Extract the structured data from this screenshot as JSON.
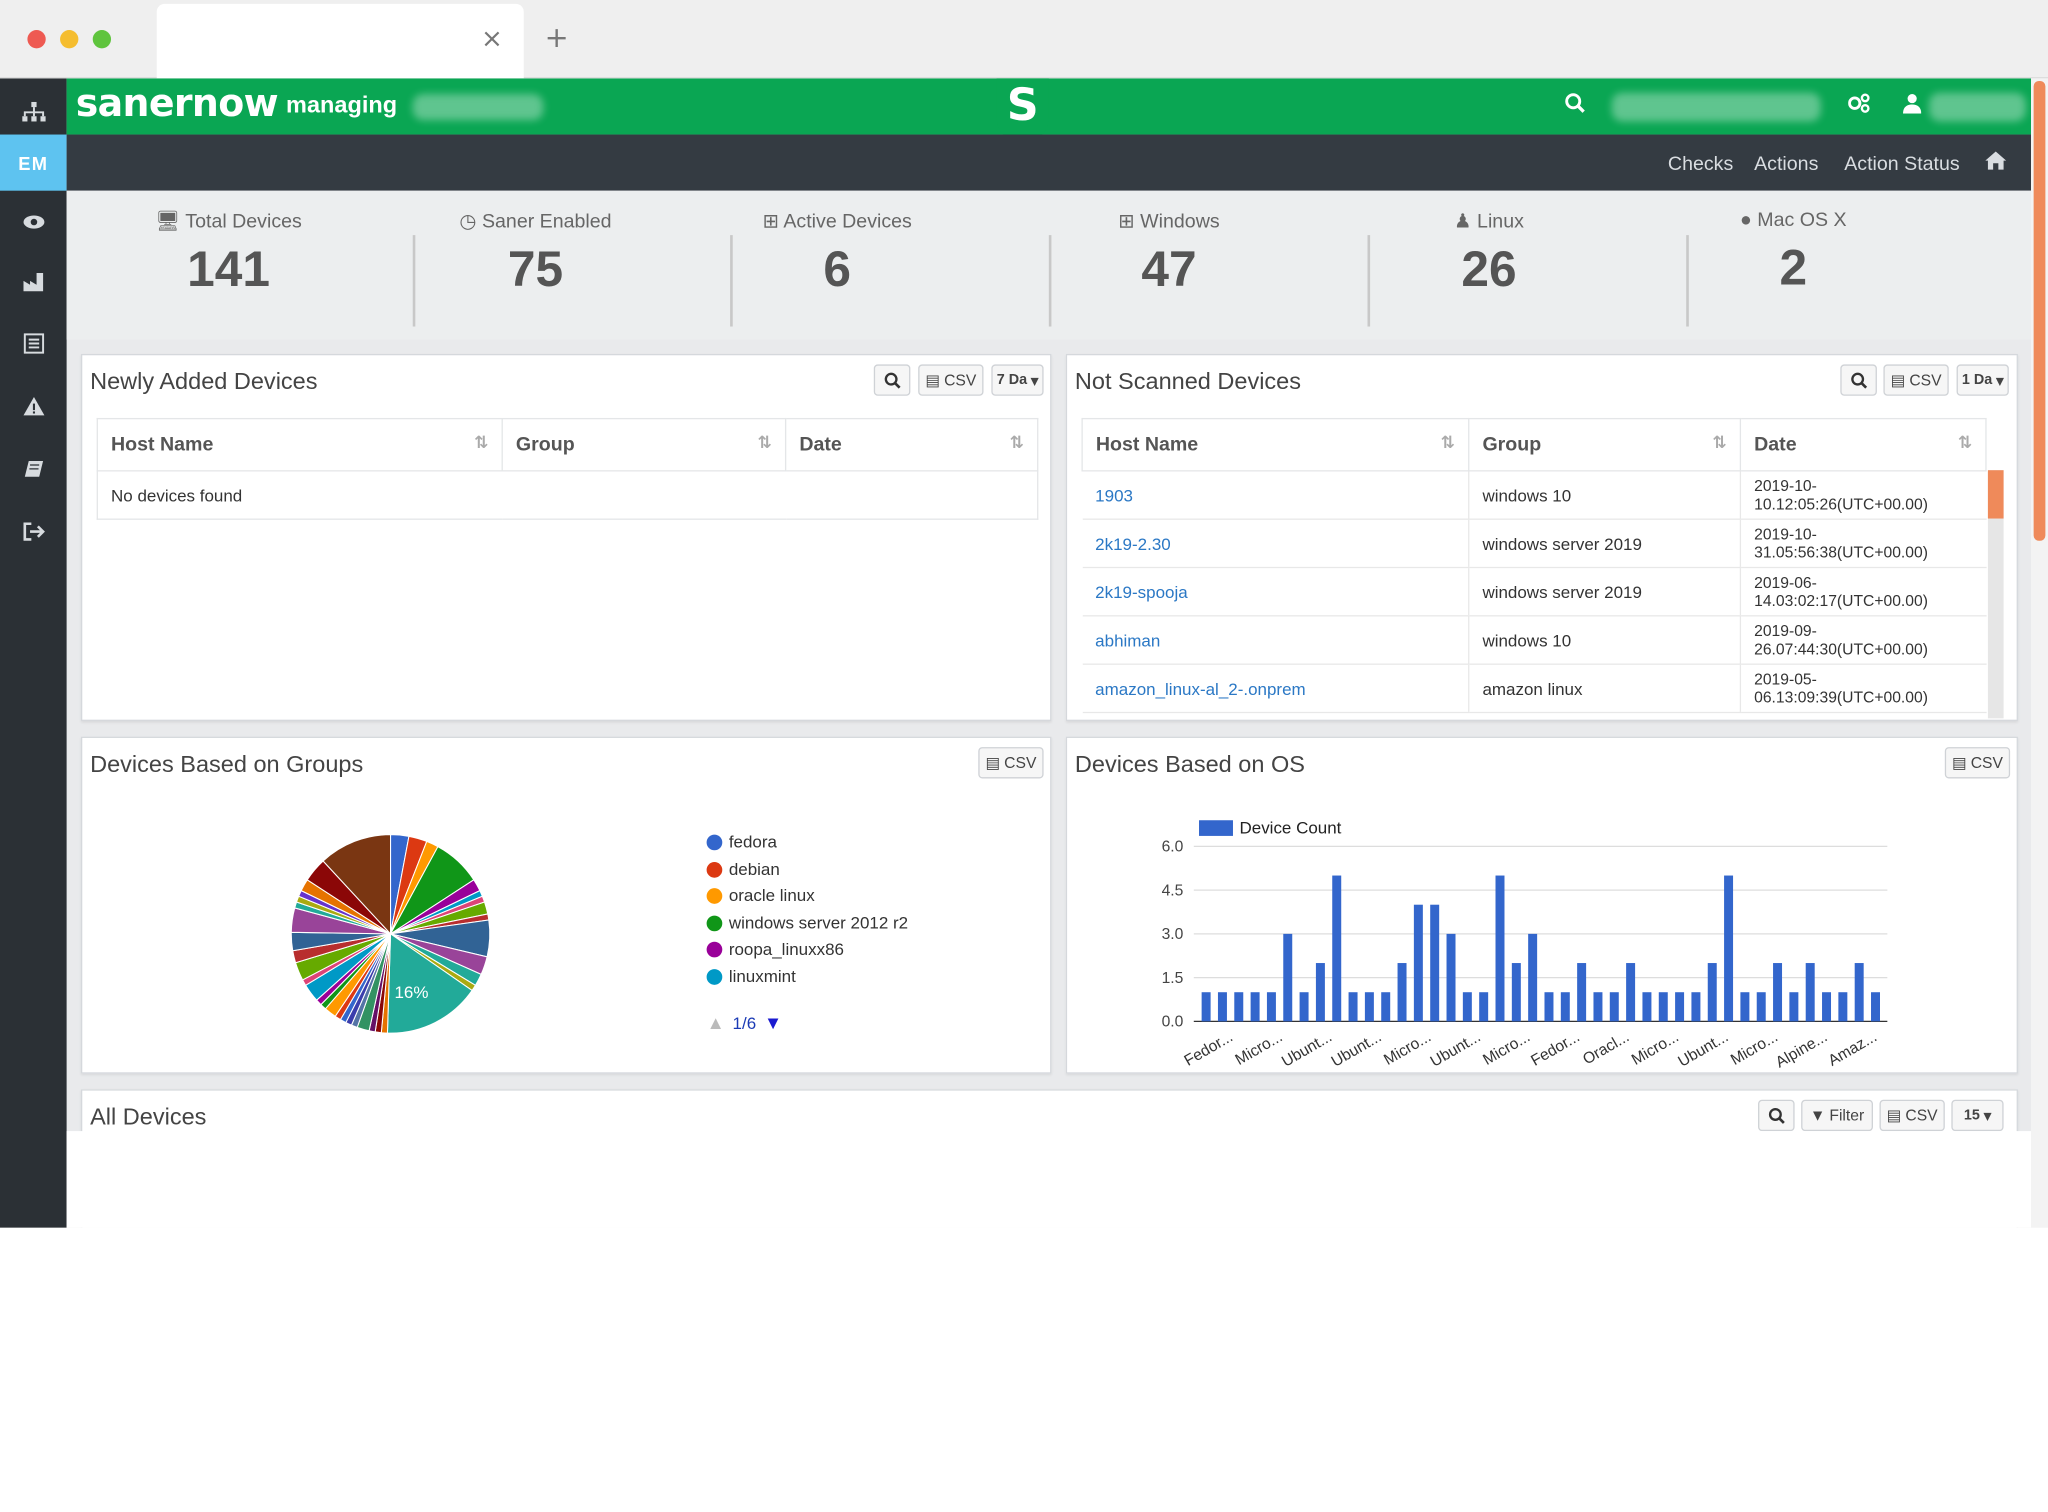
{
  "browser": {
    "tab_title": "",
    "close_glyph": "×",
    "new_tab_glyph": "+"
  },
  "topbar": {
    "brand": "sanernow",
    "managing": "managing",
    "logo_glyph": "S"
  },
  "sidebar": {
    "em_label": "EM"
  },
  "nav": {
    "checks": "Checks",
    "actions": "Actions",
    "action_status": "Action Status"
  },
  "summary": [
    {
      "label": "Total Devices",
      "value": "141",
      "icon": "monitor-icon"
    },
    {
      "label": "Saner Enabled",
      "value": "75",
      "icon": "power-icon"
    },
    {
      "label": "Active Devices",
      "value": "6",
      "icon": "windows-icon"
    },
    {
      "label": "Windows",
      "value": "47",
      "icon": "windows-icon"
    },
    {
      "label": "Linux",
      "value": "26",
      "icon": "linux-icon"
    },
    {
      "label": "Mac OS X",
      "value": "2",
      "icon": "apple-icon"
    }
  ],
  "newly_added": {
    "title": "Newly Added Devices",
    "csv": "CSV",
    "range": "7 Da",
    "columns": [
      "Host Name",
      "Group",
      "Date"
    ],
    "empty": "No devices found"
  },
  "not_scanned": {
    "title": "Not Scanned Devices",
    "csv": "CSV",
    "range": "1 Da",
    "columns": [
      "Host Name",
      "Group",
      "Date"
    ],
    "rows": [
      [
        "1903",
        "windows 10",
        "2019-10-10.12:05:26(UTC+00.00)"
      ],
      [
        "2k19-2.30",
        "windows server 2019",
        "2019-10-31.05:56:38(UTC+00.00)"
      ],
      [
        "2k19-spooja",
        "windows server 2019",
        "2019-06-14.03:02:17(UTC+00.00)"
      ],
      [
        "abhiman",
        "windows 10",
        "2019-09-26.07:44:30(UTC+00.00)"
      ],
      [
        "amazon_linux-al_2-.onprem",
        "amazon linux",
        "2019-05-06.13:09:39(UTC+00.00)"
      ]
    ]
  },
  "groups_panel": {
    "title": "Devices Based on Groups",
    "csv": "CSV",
    "pie_label": "16%",
    "pager": "1/6",
    "legend": [
      {
        "name": "fedora",
        "color": "#3366cc"
      },
      {
        "name": "debian",
        "color": "#dc3912"
      },
      {
        "name": "oracle linux",
        "color": "#ff9900"
      },
      {
        "name": "windows server 2012 r2",
        "color": "#109618"
      },
      {
        "name": "roopa_linuxx86",
        "color": "#990099"
      },
      {
        "name": "linuxmint",
        "color": "#0099c6"
      }
    ]
  },
  "os_panel": {
    "title": "Devices Based on OS",
    "csv": "CSV"
  },
  "all_devices": {
    "title": "All Devices",
    "filter": "Filter",
    "csv": "CSV",
    "page_size": "15"
  },
  "chart_data": {
    "type": "bar",
    "title": "",
    "legend": "Device Count",
    "legend_position": "top-left",
    "color": "#3366cc",
    "ylim": [
      0,
      6
    ],
    "yticks": [
      "0.0",
      "1.5",
      "3.0",
      "4.5",
      "6.0"
    ],
    "grid": true,
    "xtick_labels": [
      "Fedor...",
      "Micro...",
      "Ubunt...",
      "Ubunt...",
      "Micro...",
      "Ubunt...",
      "Micro...",
      "Fedor...",
      "Oracl...",
      "Micro...",
      "Ubunt...",
      "Micro...",
      "Alpine...",
      "Amaz..."
    ],
    "values": [
      1,
      1,
      1,
      1,
      1,
      3,
      1,
      2,
      5,
      1,
      1,
      1,
      2,
      4,
      4,
      3,
      1,
      1,
      5,
      2,
      3,
      1,
      1,
      2,
      1,
      1,
      2,
      1,
      1,
      1,
      1,
      2,
      5,
      1,
      1,
      2,
      1,
      2,
      1,
      1,
      2,
      1
    ]
  }
}
